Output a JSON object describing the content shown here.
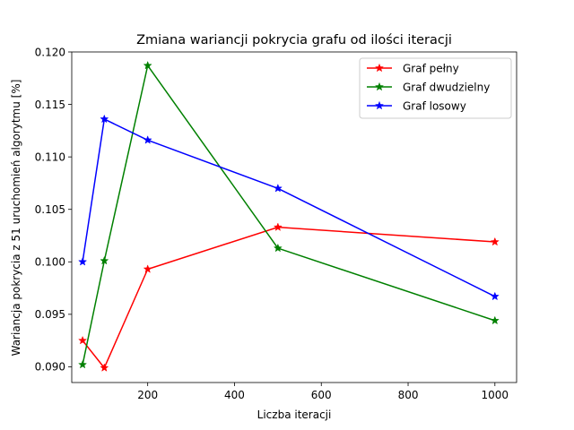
{
  "chart_data": {
    "type": "line",
    "title": "Zmiana wariancji pokrycia grafu od ilości iteracji",
    "xlabel": "Liczba iteracji",
    "ylabel": "Wariancja pokrycia z 51 uruchomień algorytmu [%]",
    "xlim": [
      25,
      1050
    ],
    "ylim": [
      0.0885,
      0.12
    ],
    "xticks": [
      {
        "value": 200,
        "label": "200"
      },
      {
        "value": 400,
        "label": "400"
      },
      {
        "value": 600,
        "label": "600"
      },
      {
        "value": 800,
        "label": "800"
      },
      {
        "value": 1000,
        "label": "1000"
      }
    ],
    "yticks": [
      {
        "value": 0.09,
        "label": "0.090"
      },
      {
        "value": 0.095,
        "label": "0.095"
      },
      {
        "value": 0.1,
        "label": "0.100"
      },
      {
        "value": 0.105,
        "label": "0.105"
      },
      {
        "value": 0.11,
        "label": "0.110"
      },
      {
        "value": 0.115,
        "label": "0.115"
      },
      {
        "value": 0.12,
        "label": "0.120"
      }
    ],
    "grid": false,
    "legend_position": "top-right",
    "marker": "star",
    "x": [
      50,
      100,
      200,
      500,
      1000
    ],
    "series": [
      {
        "name": "Graf pełny",
        "color": "#ff0000",
        "values": [
          0.0925,
          0.0899,
          0.0993,
          0.1033,
          0.1019
        ]
      },
      {
        "name": "Graf dwudzielny",
        "color": "#008000",
        "values": [
          0.0902,
          0.1001,
          0.1187,
          0.1013,
          0.0944
        ]
      },
      {
        "name": "Graf losowy",
        "color": "#0000ff",
        "values": [
          0.1,
          0.1136,
          0.1116,
          0.107,
          0.0967
        ]
      }
    ]
  }
}
